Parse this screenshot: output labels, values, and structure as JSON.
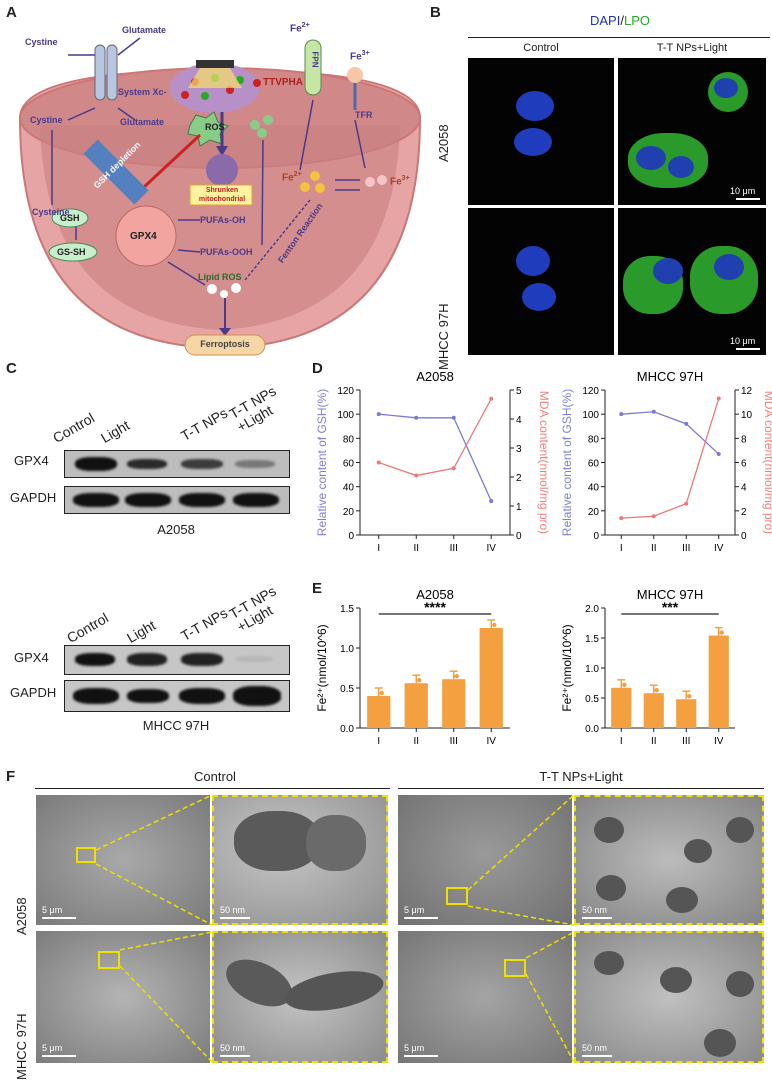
{
  "panels": {
    "A": "A",
    "B": "B",
    "C": "C",
    "D": "D",
    "E": "E",
    "F": "F"
  },
  "panelA": {
    "cystine_top": "Cystine",
    "glutamate_top": "Glutamate",
    "system_xc": "System Xc-",
    "cystine": "Cystine",
    "glutamate": "Glutamate",
    "ros": "ROS",
    "ttvpha": "TTVPHA",
    "gsh_depletion": "GSH depletion",
    "shrunken": "Shrunken mitochondrial",
    "cysteine": "Cysteine",
    "gsh": "GSH",
    "gssh": "GS-SH",
    "gpx4": "GPX4",
    "pufa_oh": "PUFAs-OH",
    "pufa_ooh": "PUFAs-OOH",
    "lipid_ros": "Lipid ROS",
    "ferroptosis": "Ferroptosis",
    "fe2_top": "Fe",
    "fe2_top_sup": "2+",
    "fpn": "FPN",
    "fe3_top": "Fe",
    "fe3_top_sup": "3+",
    "tfr": "TFR",
    "fe2_mid": "Fe",
    "fe2_mid_sup": "2+",
    "fe3_mid": "Fe",
    "fe3_mid_sup": "3+",
    "fenton": "Fenton Reaction"
  },
  "panelB": {
    "title_dapi": "DAPI",
    "title_slash": "/",
    "title_lpo": "LPO",
    "col_control": "Control",
    "col_treat": "T-T NPs+Light",
    "row1": "A2058",
    "row2": "MHCC 97H",
    "scale": "10 μm",
    "colors": {
      "dapi": "#2233aa",
      "lpo": "#22aa22"
    }
  },
  "panelC": {
    "lanes": [
      "Control",
      "Light",
      "T-T NPs",
      "T-T NPs\n+Light"
    ],
    "lane1": "Control",
    "lane2": "Light",
    "lane3": "T-T NPs",
    "lane4a": "T-T NPs",
    "lane4b": "+Light",
    "gpx4": "GPX4",
    "gapdh": "GAPDH",
    "cell1": "A2058",
    "cell2": "MHCC 97H"
  },
  "panelF": {
    "col_control": "Control",
    "col_treat": "T-T NPs+Light",
    "row1": "A2058",
    "row2": "MHCC 97H",
    "s5": "5 μm",
    "s50": "50 nm"
  },
  "chart_data": [
    {
      "type": "line",
      "title": "A2058",
      "ylabel": "Relative content of GSH(%)",
      "y2label": "MDA content(nmol/mg pro)",
      "categories": [
        "I",
        "II",
        "III",
        "IV"
      ],
      "ylim": [
        0,
        120
      ],
      "y2lim": [
        0,
        5
      ],
      "yticks": [
        "0",
        "20",
        "40",
        "60",
        "80",
        "100",
        "120"
      ],
      "y2ticks": [
        "0",
        "1",
        "2",
        "3",
        "4",
        "5"
      ],
      "series": [
        {
          "axis": "left",
          "color": "#7a7ad8",
          "values": [
            100,
            97,
            97,
            28
          ]
        },
        {
          "axis": "right",
          "color": "#f07878",
          "values": [
            2.5,
            2.05,
            2.3,
            4.7
          ]
        }
      ]
    },
    {
      "type": "line",
      "title": "MHCC 97H",
      "ylabel": "Relative content of GSH(%)",
      "y2label": "MDA content(nmol/mg pro)",
      "categories": [
        "I",
        "II",
        "III",
        "IV"
      ],
      "ylim": [
        0,
        120
      ],
      "y2lim": [
        0,
        12
      ],
      "yticks": [
        "0",
        "20",
        "40",
        "60",
        "80",
        "100",
        "120"
      ],
      "y2ticks": [
        "0",
        "2",
        "4",
        "6",
        "8",
        "10",
        "12"
      ],
      "series": [
        {
          "axis": "left",
          "color": "#7a7ad8",
          "values": [
            100,
            102,
            92,
            67
          ]
        },
        {
          "axis": "right",
          "color": "#f07878",
          "values": [
            1.4,
            1.55,
            2.6,
            11.3
          ]
        }
      ]
    },
    {
      "type": "bar",
      "title": "A2058",
      "ylabel": "Fe²⁺(nmol/10^6)",
      "categories": [
        "I",
        "II",
        "III",
        "IV"
      ],
      "values": [
        0.4,
        0.56,
        0.61,
        1.25
      ],
      "ylim": [
        0,
        1.5
      ],
      "yticks": [
        "0.0",
        "0.5",
        "1.0",
        "1.5"
      ],
      "sig": "****",
      "color": "#f4a040"
    },
    {
      "type": "bar",
      "title": "MHCC 97H",
      "ylabel": "Fe²⁺(nmol/10^6)",
      "categories": [
        "I",
        "II",
        "III",
        "IV"
      ],
      "values": [
        0.67,
        0.58,
        0.48,
        1.54
      ],
      "ylim": [
        0,
        2.0
      ],
      "yticks": [
        "0.0",
        "0.5",
        "1.0",
        "1.5",
        "2.0"
      ],
      "sig": "***",
      "color": "#f4a040"
    }
  ]
}
